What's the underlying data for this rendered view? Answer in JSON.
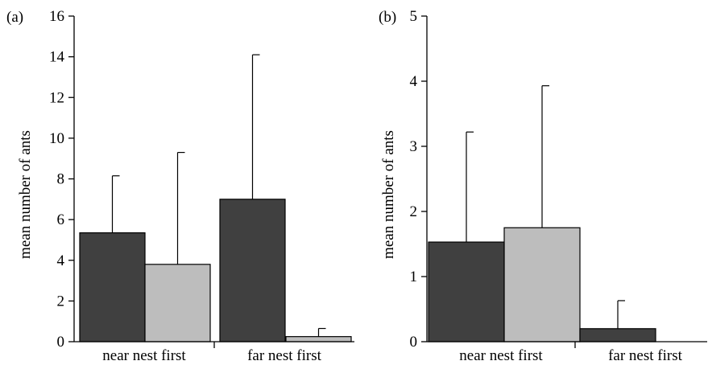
{
  "colors": {
    "dark": "#404040",
    "light": "#bdbdbd",
    "axis": "#000000"
  },
  "chart_data": [
    {
      "type": "bar",
      "panel_label": "(a)",
      "ylabel": "mean number of ants",
      "ylim": [
        0,
        16
      ],
      "yticks": [
        0,
        2,
        4,
        6,
        8,
        10,
        12,
        14,
        16
      ],
      "categories": [
        "near nest first",
        "far nest first"
      ],
      "series": [
        {
          "color": "#404040",
          "values": [
            5.35,
            7.0
          ],
          "error_upper": [
            8.15,
            14.1
          ]
        },
        {
          "color": "#bdbdbd",
          "values": [
            3.8,
            0.25
          ],
          "error_upper": [
            9.3,
            0.65
          ]
        }
      ]
    },
    {
      "type": "bar",
      "panel_label": "(b)",
      "ylabel": "mean number of ants",
      "ylim": [
        0,
        5
      ],
      "yticks": [
        0,
        1,
        2,
        3,
        4,
        5
      ],
      "categories": [
        "near nest first",
        "far nest first"
      ],
      "series": [
        {
          "color": "#404040",
          "values": [
            1.53,
            0.2
          ],
          "error_upper": [
            3.22,
            0.63
          ]
        },
        {
          "color": "#bdbdbd",
          "values": [
            1.75,
            0.0
          ],
          "error_upper": [
            3.93,
            null
          ]
        }
      ]
    }
  ]
}
